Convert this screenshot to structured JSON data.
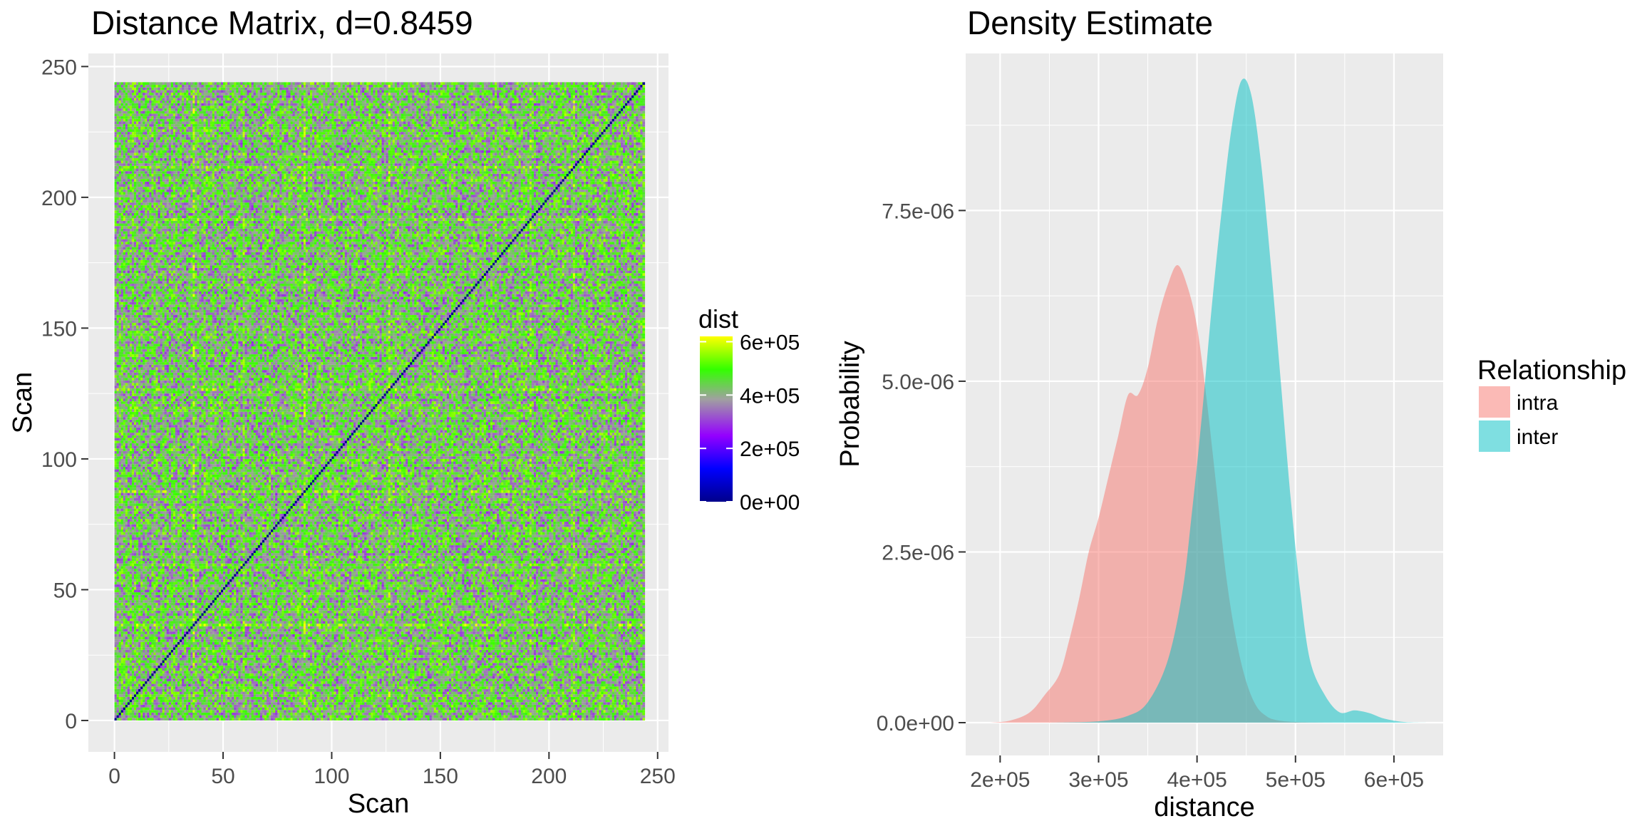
{
  "chart_data": [
    {
      "type": "heatmap",
      "title": "Distance Matrix, d=0.8459",
      "xlabel": "Scan",
      "ylabel": "Scan",
      "xlim": [
        -12,
        255
      ],
      "ylim": [
        -12,
        255
      ],
      "x_ticks": [
        0,
        50,
        100,
        150,
        200,
        250
      ],
      "y_ticks": [
        0,
        50,
        100,
        150,
        200,
        250
      ],
      "matrix_size": 244,
      "diagonal_value": 0,
      "typical_offdiag_range": [
        300000,
        600000
      ],
      "bright_rows_cols": [
        87,
        126,
        191,
        211,
        59,
        36
      ],
      "grid": true,
      "legend": {
        "title": "dist",
        "position": "right",
        "colors": [
          "#00008B",
          "#0000FF",
          "#9400FF",
          "#A0A0A0",
          "#33FF00",
          "#FFFF00"
        ],
        "labels": [
          "0e+00",
          "2e+05",
          "4e+05",
          "6e+05"
        ],
        "limits": [
          0,
          620000
        ],
        "breaks": [
          0,
          200000,
          400000,
          600000
        ]
      }
    },
    {
      "type": "area",
      "title": "Density Estimate",
      "xlabel": "distance",
      "ylabel": "Probability",
      "xlim": [
        165000,
        650000
      ],
      "ylim": [
        -4.8e-07,
        9.8e-06
      ],
      "x_ticks": [
        200000,
        300000,
        400000,
        500000,
        600000
      ],
      "x_tick_labels": [
        "2e+05",
        "3e+05",
        "4e+05",
        "5e+05",
        "6e+05"
      ],
      "y_ticks": [
        0,
        2.5e-06,
        5e-06,
        7.5e-06
      ],
      "y_tick_labels": [
        "0.0e+00",
        "2.5e-06",
        "5.0e-06",
        "7.5e-06"
      ],
      "grid": true,
      "legend": {
        "title": "Relationship",
        "position": "right",
        "entries": [
          {
            "name": "intra",
            "color": "#F8766D"
          },
          {
            "name": "inter",
            "color": "#00BFC4"
          }
        ]
      },
      "series": [
        {
          "name": "intra",
          "color": "#F8766D",
          "x": [
            190000,
            210000,
            230000,
            245000,
            260000,
            270000,
            280000,
            290000,
            300000,
            310000,
            320000,
            330000,
            340000,
            350000,
            360000,
            370000,
            380000,
            390000,
            400000,
            410000,
            420000,
            430000,
            440000,
            450000,
            460000,
            470000,
            480000,
            500000,
            540000
          ],
          "values": [
            0,
            3e-08,
            1.5e-07,
            4e-07,
            7e-07,
            1.2e-06,
            1.8e-06,
            2.5e-06,
            3e-06,
            3.6e-06,
            4.2e-06,
            4.8e-06,
            4.8e-06,
            5.2e-06,
            5.9e-06,
            6.4e-06,
            6.7e-06,
            6.4e-06,
            5.8e-06,
            4.7e-06,
            3.4e-06,
            2.1e-06,
            1.2e-06,
            6e-07,
            2.5e-07,
            1e-07,
            4e-08,
            1e-08,
            0
          ]
        },
        {
          "name": "inter",
          "color": "#00BFC4",
          "x": [
            250000,
            300000,
            330000,
            350000,
            370000,
            385000,
            395000,
            405000,
            415000,
            425000,
            435000,
            445000,
            455000,
            465000,
            475000,
            485000,
            495000,
            505000,
            515000,
            530000,
            545000,
            560000,
            575000,
            590000,
            610000,
            635000
          ],
          "values": [
            0,
            2e-08,
            1e-07,
            3e-07,
            9e-07,
            1.9e-06,
            3.1e-06,
            4.5e-06,
            6.1e-06,
            7.5e-06,
            8.7e-06,
            9.4e-06,
            9.2e-06,
            8.2e-06,
            6.7e-06,
            5e-06,
            3.3e-06,
            1.9e-06,
            9e-07,
            4e-07,
            1.5e-07,
            1.8e-07,
            1.4e-07,
            6e-08,
            1e-08,
            0
          ]
        }
      ]
    }
  ]
}
